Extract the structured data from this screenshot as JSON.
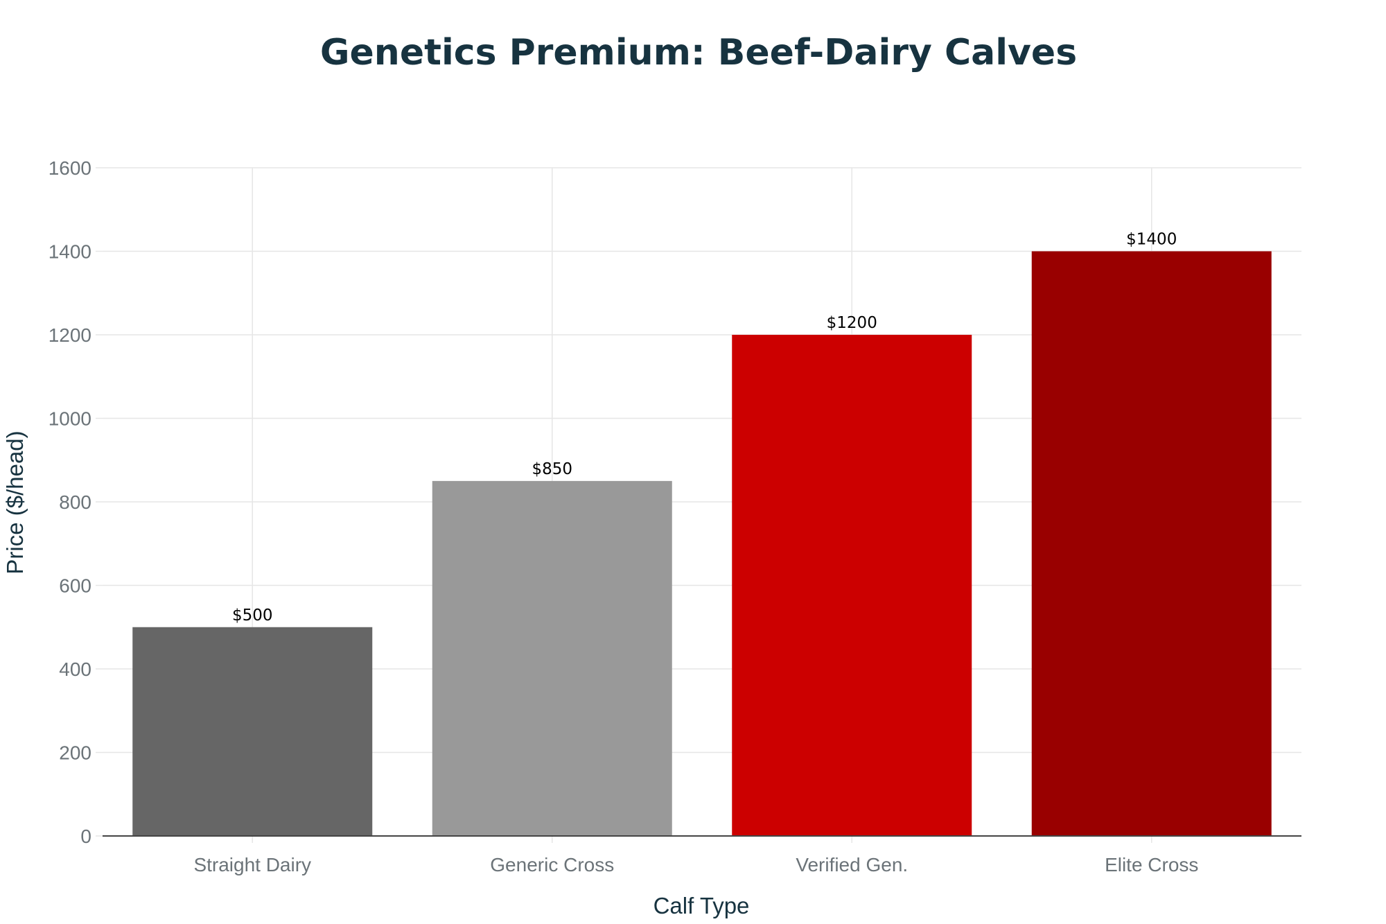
{
  "colors": {
    "background": "#ffffff",
    "title": "#173340",
    "axis_title": "#173340",
    "tick_label": "#6b7378",
    "grid": "#e6e6e6",
    "baseline": "#444444",
    "bar_label": "#000000"
  },
  "chart_data": {
    "type": "bar",
    "title": "Genetics Premium: Beef-Dairy Calves",
    "xlabel": "Calf Type",
    "ylabel": "Price ($/head)",
    "categories": [
      "Straight Dairy",
      "Generic Cross",
      "Verified Gen.",
      "Elite Cross"
    ],
    "values": [
      500,
      850,
      1200,
      1400
    ],
    "value_labels": [
      "$500",
      "$850",
      "$1200",
      "$1400"
    ],
    "bar_colors": [
      "#666666",
      "#999999",
      "#cc0000",
      "#990000"
    ],
    "ylim": [
      0,
      1600
    ],
    "yticks": [
      0,
      200,
      400,
      600,
      800,
      1000,
      1200,
      1400,
      1600
    ],
    "ytick_labels": [
      "0",
      "200",
      "400",
      "600",
      "800",
      "1000",
      "1200",
      "1400",
      "1600"
    ],
    "grid": true,
    "legend": false
  }
}
